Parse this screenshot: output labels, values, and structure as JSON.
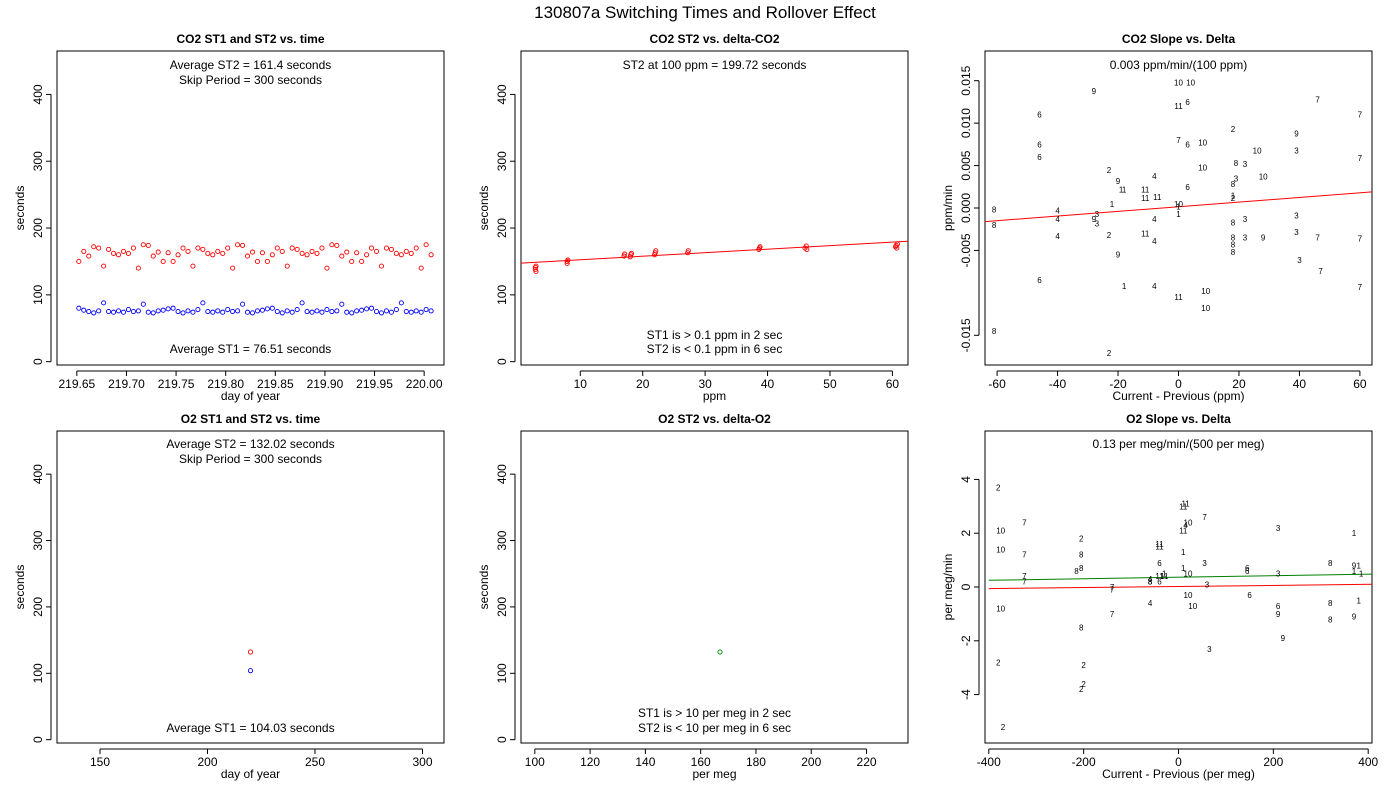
{
  "page_title": "130807a   Switching Times and Rollover Effect",
  "chart_data": [
    {
      "id": "co2_time",
      "type": "scatter",
      "title": "CO2 ST1 and ST2 vs. time",
      "xlabel": "day of year",
      "ylabel": "seconds",
      "xlim": [
        219.63,
        220.02
      ],
      "ylim": [
        -5,
        465
      ],
      "xticks": [
        "219.65",
        "219.70",
        "219.75",
        "219.80",
        "219.85",
        "219.90",
        "219.95",
        "220.00"
      ],
      "yticks": [
        "0",
        "100",
        "200",
        "300",
        "400"
      ],
      "annotations": [
        "Average ST2 =  161.4  seconds",
        "Skip Period =  300  seconds",
        "Average ST1 =  76.51  seconds"
      ],
      "series": [
        {
          "color": "#ff0000",
          "marker": "circle",
          "x": [
            219.652,
            219.657,
            219.662,
            219.667,
            219.672,
            219.677,
            219.682,
            219.687,
            219.692,
            219.697,
            219.702,
            219.707,
            219.712,
            219.717,
            219.722,
            219.727,
            219.732,
            219.737,
            219.742,
            219.747,
            219.752,
            219.757,
            219.762,
            219.767,
            219.772,
            219.777,
            219.782,
            219.787,
            219.792,
            219.797,
            219.802,
            219.807,
            219.812,
            219.817,
            219.822,
            219.827,
            219.832,
            219.837,
            219.842,
            219.847,
            219.852,
            219.857,
            219.862,
            219.867,
            219.872,
            219.877,
            219.882,
            219.887,
            219.892,
            219.897,
            219.902,
            219.907,
            219.912,
            219.917,
            219.922,
            219.927,
            219.932,
            219.937,
            219.942,
            219.947,
            219.952,
            219.957,
            219.962,
            219.967,
            219.972,
            219.977,
            219.982,
            219.987,
            219.992,
            219.997,
            220.002,
            220.007
          ],
          "y": [
            150,
            165,
            158,
            172,
            170,
            143,
            168,
            162,
            160,
            165,
            162,
            170,
            140,
            175,
            174,
            158,
            164,
            150,
            163,
            150,
            160,
            170,
            165,
            143,
            170,
            168,
            162,
            160,
            165,
            162,
            170,
            140,
            175,
            174,
            158,
            164,
            150,
            163,
            150,
            160,
            170,
            165,
            143,
            170,
            168,
            162,
            160,
            165,
            162,
            170,
            140,
            175,
            174,
            158,
            164,
            150,
            163,
            150,
            160,
            170,
            165,
            143,
            170,
            168,
            162,
            160,
            165,
            162,
            170,
            140,
            175,
            160
          ]
        },
        {
          "color": "#0000ff",
          "marker": "circle",
          "x": [
            219.652,
            219.657,
            219.662,
            219.667,
            219.672,
            219.677,
            219.682,
            219.687,
            219.692,
            219.697,
            219.702,
            219.707,
            219.712,
            219.717,
            219.722,
            219.727,
            219.732,
            219.737,
            219.742,
            219.747,
            219.752,
            219.757,
            219.762,
            219.767,
            219.772,
            219.777,
            219.782,
            219.787,
            219.792,
            219.797,
            219.802,
            219.807,
            219.812,
            219.817,
            219.822,
            219.827,
            219.832,
            219.837,
            219.842,
            219.847,
            219.852,
            219.857,
            219.862,
            219.867,
            219.872,
            219.877,
            219.882,
            219.887,
            219.892,
            219.897,
            219.902,
            219.907,
            219.912,
            219.917,
            219.922,
            219.927,
            219.932,
            219.937,
            219.942,
            219.947,
            219.952,
            219.957,
            219.962,
            219.967,
            219.972,
            219.977,
            219.982,
            219.987,
            219.992,
            219.997,
            220.002,
            220.007
          ],
          "y": [
            80,
            77,
            75,
            73,
            76,
            88,
            75,
            74,
            76,
            74,
            78,
            75,
            76,
            86,
            74,
            73,
            76,
            77,
            79,
            80,
            75,
            73,
            76,
            74,
            78,
            88,
            75,
            74,
            76,
            74,
            78,
            75,
            76,
            86,
            74,
            73,
            76,
            77,
            79,
            80,
            75,
            73,
            76,
            74,
            78,
            88,
            75,
            74,
            76,
            74,
            78,
            75,
            76,
            86,
            74,
            73,
            76,
            77,
            79,
            80,
            75,
            73,
            76,
            74,
            78,
            88,
            75,
            74,
            76,
            74,
            78,
            76
          ]
        }
      ]
    },
    {
      "id": "co2_delta",
      "type": "scatter",
      "title": "CO2 ST2 vs. delta-CO2",
      "xlabel": "ppm",
      "ylabel": "seconds",
      "xlim": [
        0.5,
        62.5
      ],
      "ylim": [
        -5,
        465
      ],
      "xticks": [
        "10",
        "20",
        "30",
        "40",
        "50",
        "60"
      ],
      "yticks": [
        "0",
        "100",
        "200",
        "300",
        "400"
      ],
      "annotations": [
        "ST2 at 100 ppm =  199.72  seconds",
        "ST1 is > 0.1 ppm in 2 sec",
        "ST2 is < 0.1 ppm in 6 sec"
      ],
      "fit_line": {
        "color": "#ff0000",
        "x": [
          0.5,
          62.5
        ],
        "y": [
          147.5,
          180.3
        ]
      },
      "series": [
        {
          "color": "#ff0000",
          "marker": "circle",
          "x": [
            2.8,
            2.8,
            2.9,
            2.9,
            7.9,
            7.9,
            8.0,
            17.0,
            17.1,
            18.0,
            18.1,
            18.2,
            21.9,
            22.0,
            22.1,
            27.2,
            27.3,
            38.6,
            38.7,
            38.8,
            46.0,
            46.2,
            46.3,
            60.5,
            60.6,
            60.7,
            60.8
          ],
          "y": [
            138,
            141,
            143,
            135,
            147,
            150,
            152,
            158,
            161,
            157,
            160,
            162,
            160,
            163,
            166,
            163,
            166,
            168,
            170,
            172,
            170,
            173,
            168,
            172,
            174,
            170,
            176
          ]
        }
      ]
    },
    {
      "id": "co2_slope",
      "type": "scatter",
      "title": "CO2 Slope vs. Delta",
      "xlabel": "Current - Previous (ppm)",
      "ylabel": "ppm/min",
      "xlim": [
        -64,
        64
      ],
      "ylim": [
        -0.0185,
        0.0185
      ],
      "xticks": [
        "-60",
        "-40",
        "-20",
        "0",
        "20",
        "40",
        "60"
      ],
      "yticks": [
        "-0.015",
        "-0.005",
        "0.000",
        "0.005",
        "0.010",
        "0.015"
      ],
      "annotations": [
        "0.003  ppm/min/(100 ppm)"
      ],
      "fit_line": {
        "color": "#ff0000",
        "x": [
          -64,
          64
        ],
        "y": [
          -0.0016,
          0.0019
        ]
      },
      "series": [
        {
          "color": "#ff0000",
          "marker": "label",
          "x": [
            -61,
            -61,
            -61,
            -46,
            -46,
            -46,
            -46,
            -40,
            -40,
            -40,
            -28,
            -28,
            -27,
            -27,
            -23,
            -23,
            -23,
            -22,
            -20,
            -20,
            -19,
            -18,
            -18,
            -11,
            -11,
            -11,
            -8,
            -8,
            -8,
            -8,
            -7,
            0,
            0,
            0,
            0,
            0,
            0,
            0,
            3,
            3,
            3,
            4,
            8,
            8,
            9,
            9,
            18,
            18,
            18,
            18,
            18,
            18,
            18,
            18,
            19,
            19,
            22,
            22,
            22,
            26,
            28,
            28,
            39,
            39,
            39,
            39,
            40,
            46,
            46,
            47,
            60,
            60,
            60,
            60
          ],
          "y": [
            -0.0002,
            -0.002,
            -0.0145,
            0.011,
            0.0075,
            0.006,
            -0.0085,
            -0.0003,
            -0.0013,
            -0.0033,
            0.0138,
            -0.0013,
            -0.0007,
            -0.0018,
            0.0045,
            -0.0032,
            -0.0171,
            0.0005,
            0.0032,
            -0.0055,
            0.0022,
            0.0022,
            -0.0092,
            0.0022,
            0.0012,
            -0.003,
            0.0038,
            -0.0039,
            -0.0013,
            -0.0092,
            0.0013,
            0.012,
            0.0005,
            0.0002,
            -0.0007,
            -0.0105,
            0.0148,
            0.008,
            0.0125,
            0.0075,
            0.0025,
            0.0148,
            0.0077,
            0.0048,
            -0.0118,
            -0.0098,
            0.0093,
            0.0015,
            0.0012,
            0.0028,
            -0.0017,
            -0.0035,
            -0.0043,
            -0.0052,
            0.0053,
            0.0035,
            -0.0013,
            0.0052,
            -0.0035,
            0.0068,
            0.0037,
            -0.0035,
            0.0088,
            0.0068,
            -0.0009,
            -0.0028,
            -0.0061,
            0.0128,
            -0.0035,
            -0.0074,
            0.011,
            0.0059,
            -0.0036,
            -0.0093
          ],
          "labels": [
            "8",
            "8",
            "8",
            "6",
            "6",
            "6",
            "6",
            "4",
            "4",
            "4",
            "9",
            "9",
            "3",
            "3",
            "2",
            "2",
            "2",
            "1",
            "9",
            "9",
            "1",
            "1",
            "1",
            "11",
            "11",
            "11",
            "4",
            "4",
            "4",
            "4",
            "11",
            "11",
            "10",
            "1",
            "1",
            "11",
            "10",
            "7",
            "6",
            "6",
            "6",
            "10",
            "10",
            "10",
            "10",
            "10",
            "2",
            "1",
            "2",
            "8",
            "8",
            "8",
            "8",
            "8",
            "8",
            "3",
            "3",
            "3",
            "3",
            "10",
            "10",
            "9",
            "9",
            "3",
            "3",
            "3",
            "3",
            "7",
            "7",
            "7",
            "7",
            "7",
            "7",
            "7"
          ]
        }
      ]
    },
    {
      "id": "o2_time",
      "type": "scatter",
      "title": "O2 ST1 and ST2 vs. time",
      "xlabel": "day of year",
      "ylabel": "seconds",
      "xlim": [
        130,
        310
      ],
      "ylim": [
        -5,
        465
      ],
      "xticks": [
        "150",
        "200",
        "250",
        "300"
      ],
      "yticks": [
        "0",
        "100",
        "200",
        "300",
        "400"
      ],
      "annotations": [
        "Average ST2 =  132.02  seconds",
        "Skip Period =  300  seconds",
        "Average ST1 =  104.03  seconds"
      ],
      "series": [
        {
          "color": "#ff0000",
          "marker": "circle",
          "x": [
            220
          ],
          "y": [
            132
          ]
        },
        {
          "color": "#0000ff",
          "marker": "circle",
          "x": [
            220
          ],
          "y": [
            104
          ]
        }
      ]
    },
    {
      "id": "o2_delta",
      "type": "scatter",
      "title": "O2 ST2 vs. delta-O2",
      "xlabel": "per meg",
      "ylabel": "seconds",
      "xlim": [
        95,
        235
      ],
      "ylim": [
        -5,
        465
      ],
      "xticks": [
        "100",
        "120",
        "140",
        "160",
        "180",
        "200",
        "220"
      ],
      "yticks": [
        "0",
        "100",
        "200",
        "300",
        "400"
      ],
      "annotations": [
        "ST1 is > 10 per meg in 2 sec",
        "ST2 is < 10 per meg in 6 sec"
      ],
      "series": [
        {
          "color": "#008000",
          "marker": "circle",
          "x": [
            167
          ],
          "y": [
            132
          ]
        }
      ]
    },
    {
      "id": "o2_slope",
      "type": "scatter",
      "title": "O2 Slope vs. Delta",
      "xlabel": "Current - Previous (per meg)",
      "ylabel": "per meg/min",
      "xlim": [
        -408,
        408
      ],
      "ylim": [
        -5.8,
        5.8
      ],
      "xticks": [
        "-400",
        "-200",
        "0",
        "200",
        "400"
      ],
      "yticks": [
        "-4",
        "-2",
        "0",
        "2",
        "4"
      ],
      "annotations": [
        "0.13  per meg/min/(500 per meg)"
      ],
      "fit_lines": [
        {
          "color": "#008000",
          "x": [
            -400,
            408
          ],
          "y": [
            0.25,
            0.48
          ]
        },
        {
          "color": "#ff0000",
          "x": [
            -400,
            408
          ],
          "y": [
            -0.06,
            0.1
          ]
        }
      ],
      "series": [
        {
          "color": "#008000",
          "marker": "label",
          "x": [
            -380,
            -380,
            -375,
            -375,
            -375,
            -370,
            -325,
            -325,
            -325,
            -325,
            -205,
            -205,
            -205,
            -205,
            -200,
            -200,
            -205,
            -215,
            -140,
            -140,
            -140,
            -60,
            -60,
            -60,
            -60,
            -40,
            -40,
            -40,
            -40,
            -40,
            -30,
            -30,
            10,
            10,
            10,
            10,
            15,
            15,
            20,
            20,
            20,
            30,
            55,
            55,
            60,
            65,
            145,
            145,
            150,
            210,
            210,
            210,
            210,
            220,
            320,
            320,
            320,
            370,
            370,
            370,
            370,
            380,
            380,
            385
          ],
          "y": [
            3.7,
            -2.8,
            -0.8,
            2.1,
            1.4,
            -5.2,
            2.4,
            1.2,
            0.4,
            0.2,
            1.8,
            1.2,
            0.7,
            -1.5,
            -2.9,
            -3.6,
            -3.8,
            0.6,
            0,
            -0.1,
            -1.0,
            0.3,
            0.2,
            -0.6,
            0.2,
            1.5,
            1.6,
            0.9,
            0.4,
            0.2,
            0.5,
            0.4,
            3.0,
            2.1,
            1.3,
            0.7,
            3.1,
            2.3,
            2.4,
            0.5,
            -0.3,
            -0.7,
            2.6,
            0.9,
            0.1,
            -2.3,
            0.7,
            0.6,
            -0.3,
            -0.7,
            2.2,
            0.5,
            -1.0,
            -1.9,
            0.9,
            -0.6,
            -1.2,
            0.8,
            -1.1,
            2.0,
            0.6,
            -0.5,
            0.8,
            0.5
          ],
          "labels": [
            "2",
            "2",
            "10",
            "10",
            "10",
            "2",
            "7",
            "7",
            "7",
            "7",
            "2",
            "8",
            "8",
            "8",
            "2",
            "2",
            "2",
            "8",
            "7",
            "7",
            "7",
            "4",
            "8",
            "4",
            "8",
            "11",
            "11",
            "6",
            "11",
            "6",
            "1",
            "11",
            "11",
            "11",
            "1",
            "1",
            "11",
            "4",
            "10",
            "10",
            "10",
            "10",
            "7",
            "3",
            "3",
            "3",
            "6",
            "6",
            "6",
            "6",
            "3",
            "3",
            "9",
            "9",
            "8",
            "8",
            "8",
            "9",
            "9",
            "1",
            "1",
            "1",
            "1",
            "1"
          ]
        }
      ]
    }
  ]
}
